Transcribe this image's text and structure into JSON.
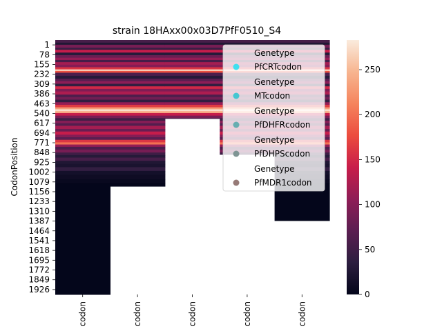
{
  "chart_data": {
    "type": "heatmap",
    "title": "strain 18HAxx00x03D7PfF0510_S4",
    "ylabel": "CodonPosition",
    "xlabel": "",
    "columns": [
      "codon",
      "codon",
      "codon",
      "codon",
      "codon"
    ],
    "y_tick_labels": [
      "1",
      "78",
      "155",
      "232",
      "309",
      "386",
      "463",
      "540",
      "617",
      "694",
      "771",
      "848",
      "925",
      "1002",
      "1079",
      "1156",
      "1233",
      "1310",
      "1387",
      "1464",
      "1541",
      "1618",
      "1695",
      "1772",
      "1849",
      "1926"
    ],
    "y_range": [
      1,
      2000
    ],
    "column_extents": [
      2000,
      1150,
      618,
      900,
      1420
    ],
    "colorbar": {
      "min": 0,
      "max": 283,
      "ticks": [
        0,
        50,
        100,
        150,
        200,
        250
      ],
      "colormap": "rocket",
      "stops": [
        "#03051a",
        "#2c1e3f",
        "#5b1e51",
        "#8f1d56",
        "#c81d4a",
        "#ec4c3e",
        "#f5845d",
        "#f7b590",
        "#faebdd"
      ]
    },
    "bands": [
      {
        "pos": [
          0,
          22
        ],
        "value": 55
      },
      {
        "pos": [
          22,
          38
        ],
        "value": 25
      },
      {
        "pos": [
          38,
          62
        ],
        "value": 90
      },
      {
        "pos": [
          62,
          78
        ],
        "value": 45
      },
      {
        "pos": [
          78,
          100
        ],
        "value": 140
      },
      {
        "pos": [
          100,
          120
        ],
        "value": 30
      },
      {
        "pos": [
          120,
          140
        ],
        "value": 80
      },
      {
        "pos": [
          140,
          158
        ],
        "value": 110
      },
      {
        "pos": [
          158,
          175
        ],
        "value": 55
      },
      {
        "pos": [
          175,
          195
        ],
        "value": 120
      },
      {
        "pos": [
          195,
          215
        ],
        "value": 100
      },
      {
        "pos": [
          215,
          232
        ],
        "value": 160
      },
      {
        "pos": [
          232,
          244
        ],
        "value": 270
      },
      {
        "pos": [
          244,
          258
        ],
        "value": 180
      },
      {
        "pos": [
          258,
          282
        ],
        "value": 60
      },
      {
        "pos": [
          282,
          305
        ],
        "value": 30
      },
      {
        "pos": [
          305,
          325
        ],
        "value": 70
      },
      {
        "pos": [
          325,
          345
        ],
        "value": 105
      },
      {
        "pos": [
          345,
          365
        ],
        "value": 40
      },
      {
        "pos": [
          365,
          385
        ],
        "value": 150
      },
      {
        "pos": [
          385,
          405
        ],
        "value": 95
      },
      {
        "pos": [
          405,
          430
        ],
        "value": 125
      },
      {
        "pos": [
          430,
          450
        ],
        "value": 60
      },
      {
        "pos": [
          450,
          470
        ],
        "value": 85
      },
      {
        "pos": [
          470,
          490
        ],
        "value": 40
      },
      {
        "pos": [
          490,
          510
        ],
        "value": 110
      },
      {
        "pos": [
          510,
          530
        ],
        "value": 165
      },
      {
        "pos": [
          530,
          545
        ],
        "value": 230
      },
      {
        "pos": [
          545,
          560
        ],
        "value": 275
      },
      {
        "pos": [
          560,
          575
        ],
        "value": 240
      },
      {
        "pos": [
          575,
          595
        ],
        "value": 140
      },
      {
        "pos": [
          595,
          615
        ],
        "value": 90
      },
      {
        "pos": [
          615,
          635
        ],
        "value": 50
      },
      {
        "pos": [
          635,
          655
        ],
        "value": 100
      },
      {
        "pos": [
          655,
          675
        ],
        "value": 65
      },
      {
        "pos": [
          675,
          700
        ],
        "value": 120
      },
      {
        "pos": [
          700,
          720
        ],
        "value": 80
      },
      {
        "pos": [
          720,
          745
        ],
        "value": 140
      },
      {
        "pos": [
          745,
          765
        ],
        "value": 100
      },
      {
        "pos": [
          765,
          785
        ],
        "value": 70
      },
      {
        "pos": [
          785,
          805
        ],
        "value": 160
      },
      {
        "pos": [
          805,
          822
        ],
        "value": 200
      },
      {
        "pos": [
          822,
          840
        ],
        "value": 110
      },
      {
        "pos": [
          840,
          862
        ],
        "value": 60
      },
      {
        "pos": [
          862,
          885
        ],
        "value": 90
      },
      {
        "pos": [
          885,
          905
        ],
        "value": 50
      },
      {
        "pos": [
          905,
          925
        ],
        "value": 30
      },
      {
        "pos": [
          925,
          950
        ],
        "value": 55
      },
      {
        "pos": [
          950,
          975
        ],
        "value": 25
      },
      {
        "pos": [
          975,
          1000
        ],
        "value": 20
      },
      {
        "pos": [
          1000,
          1030
        ],
        "value": 40
      },
      {
        "pos": [
          1030,
          1060
        ],
        "value": 15
      },
      {
        "pos": [
          1060,
          1095
        ],
        "value": 10
      },
      {
        "pos": [
          1095,
          1125
        ],
        "value": 5
      },
      {
        "pos": [
          1125,
          2000
        ],
        "value": 1
      }
    ],
    "legend": {
      "placement": "top-right",
      "entries": [
        {
          "header": "Genetype",
          "label": "PfCRTcodon",
          "color": "#3ee0ef"
        },
        {
          "header": "Genetype",
          "label": "MTcodon",
          "color": "#45c7d1"
        },
        {
          "header": "Genetype",
          "label": "PfDHFRcodon",
          "color": "#67aeb1"
        },
        {
          "header": "Genetype",
          "label": "PfDHPScodon",
          "color": "#7f9594"
        },
        {
          "header": "Genetype",
          "label": "PfMDR1codon",
          "color": "#967a77"
        }
      ]
    }
  }
}
